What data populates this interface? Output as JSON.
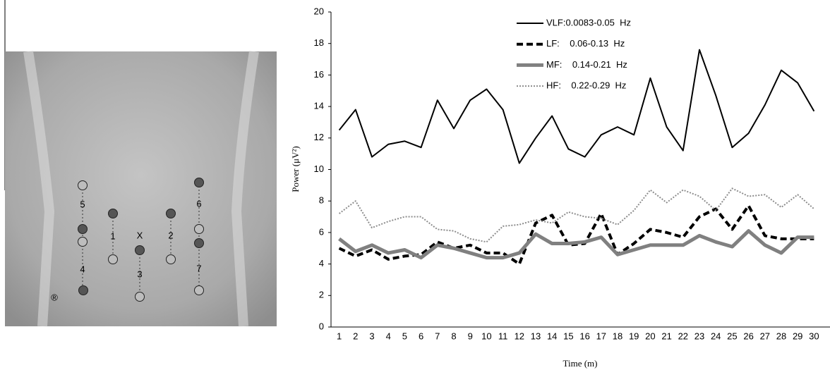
{
  "chart_data": {
    "type": "line",
    "categories": [
      1,
      2,
      3,
      4,
      5,
      6,
      7,
      8,
      9,
      10,
      11,
      12,
      13,
      14,
      15,
      16,
      17,
      18,
      19,
      20,
      21,
      22,
      23,
      24,
      25,
      26,
      27,
      28,
      29,
      30
    ],
    "x_label": "Time (m)",
    "y_label": "Power (μV²)",
    "ylim": [
      0,
      20
    ],
    "yticks": [
      0,
      2,
      4,
      6,
      8,
      10,
      12,
      14,
      16,
      18,
      20
    ],
    "series": [
      {
        "name": "VLF:0.0083-0.05  Hz",
        "color": "#000000",
        "values": [
          12.5,
          13.8,
          10.8,
          11.6,
          11.8,
          11.4,
          14.4,
          12.6,
          14.4,
          15.1,
          13.8,
          10.4,
          12.0,
          13.4,
          11.3,
          10.8,
          12.2,
          12.7,
          12.2,
          15.8,
          12.7,
          11.2,
          17.6,
          14.7,
          11.4,
          12.3,
          14.1,
          16.3,
          15.5,
          13.7
        ]
      },
      {
        "name": "LF:    0.06-0.13  Hz",
        "color": "#000000",
        "values": [
          5.0,
          4.5,
          4.9,
          4.3,
          4.5,
          4.6,
          5.4,
          5.0,
          5.2,
          4.7,
          4.7,
          4.0,
          6.6,
          7.1,
          5.2,
          5.3,
          7.2,
          4.6,
          5.3,
          6.2,
          6.0,
          5.7,
          7.0,
          7.5,
          6.2,
          7.7,
          5.8,
          5.6,
          5.6,
          5.6
        ]
      },
      {
        "name": "MF:    0.14-0.21  Hz",
        "color": "#808080",
        "values": [
          5.6,
          4.8,
          5.2,
          4.7,
          4.9,
          4.4,
          5.2,
          5.0,
          4.7,
          4.4,
          4.4,
          4.7,
          5.9,
          5.3,
          5.3,
          5.4,
          5.7,
          4.6,
          4.9,
          5.2,
          5.2,
          5.2,
          5.8,
          5.4,
          5.1,
          6.1,
          5.2,
          4.7,
          5.7,
          5.7
        ]
      },
      {
        "name": "HF:    0.22-0.29  Hz",
        "color": "#8c8c8c",
        "values": [
          7.2,
          8.0,
          6.3,
          6.7,
          7.0,
          7.0,
          6.2,
          6.1,
          5.6,
          5.4,
          6.4,
          6.5,
          6.8,
          6.6,
          7.3,
          7.0,
          6.9,
          6.5,
          7.4,
          8.7,
          7.9,
          8.7,
          8.3,
          7.4,
          8.8,
          8.3,
          8.4,
          7.6,
          8.4,
          7.5
        ]
      }
    ]
  },
  "electrode_labels": [
    "5",
    "4",
    "1",
    "X",
    "3",
    "2",
    "6",
    "7",
    "®"
  ]
}
